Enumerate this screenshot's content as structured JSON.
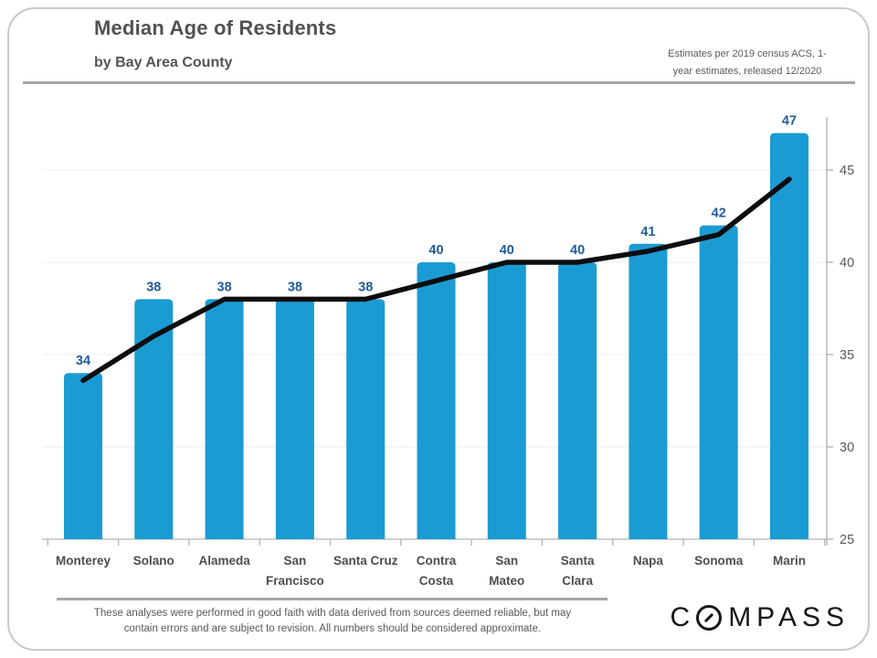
{
  "header": {
    "title": "Median Age of Residents",
    "subtitle": "by Bay Area County",
    "note_line1": "Estimates per 2019 census ACS, 1-",
    "note_line2": "year estimates, released 12/2020"
  },
  "chart_data": {
    "type": "bar",
    "title": "Median Age of Residents by Bay Area County",
    "categories": [
      "Monterey",
      "Solano",
      "Alameda",
      "San Francisco",
      "Santa Cruz",
      "Contra Costa",
      "San Mateo",
      "Santa Clara",
      "Napa",
      "Sonoma",
      "Marin"
    ],
    "category_lines": [
      [
        "Monterey"
      ],
      [
        "Solano"
      ],
      [
        "Alameda"
      ],
      [
        "San",
        "Francisco"
      ],
      [
        "Santa Cruz"
      ],
      [
        "Contra",
        "Costa"
      ],
      [
        "San",
        "Mateo"
      ],
      [
        "Santa",
        "Clara"
      ],
      [
        "Napa"
      ],
      [
        "Sonoma"
      ],
      [
        "Marin"
      ]
    ],
    "series": [
      {
        "name": "median-age",
        "type": "bar",
        "values": [
          34,
          38,
          38,
          38,
          38,
          40,
          40,
          40,
          41,
          42,
          47
        ]
      },
      {
        "name": "trend-line",
        "type": "line",
        "values": [
          33.6,
          36,
          38,
          38,
          38,
          39,
          40,
          40,
          40.6,
          41.5,
          44.5
        ]
      }
    ],
    "data_labels": [
      34,
      38,
      38,
      38,
      38,
      40,
      40,
      40,
      41,
      42,
      47
    ],
    "xlabel": "",
    "ylabel": "",
    "ylim": [
      25,
      48
    ],
    "yticks": [
      25,
      30,
      35,
      40,
      45
    ],
    "axis_side": "right",
    "grid": true,
    "legend": false,
    "colors": {
      "bar": "#1b9bd3",
      "line": "#0d0d0d",
      "value_label": "#1f5c99",
      "category_label": "#4d4d4d",
      "axis_text": "#595959",
      "gridline": "#f0f0f0",
      "axis_line": "#b3b3b3"
    }
  },
  "footer": {
    "disclaimer_line1": "These analyses  were performed in good faith with data derived from sources deemed reliable, but may",
    "disclaimer_line2": "contain errors and are subject to revision.  All numbers should be considered approximate.",
    "logo_c": "C",
    "logo_rest": "MPASS"
  }
}
